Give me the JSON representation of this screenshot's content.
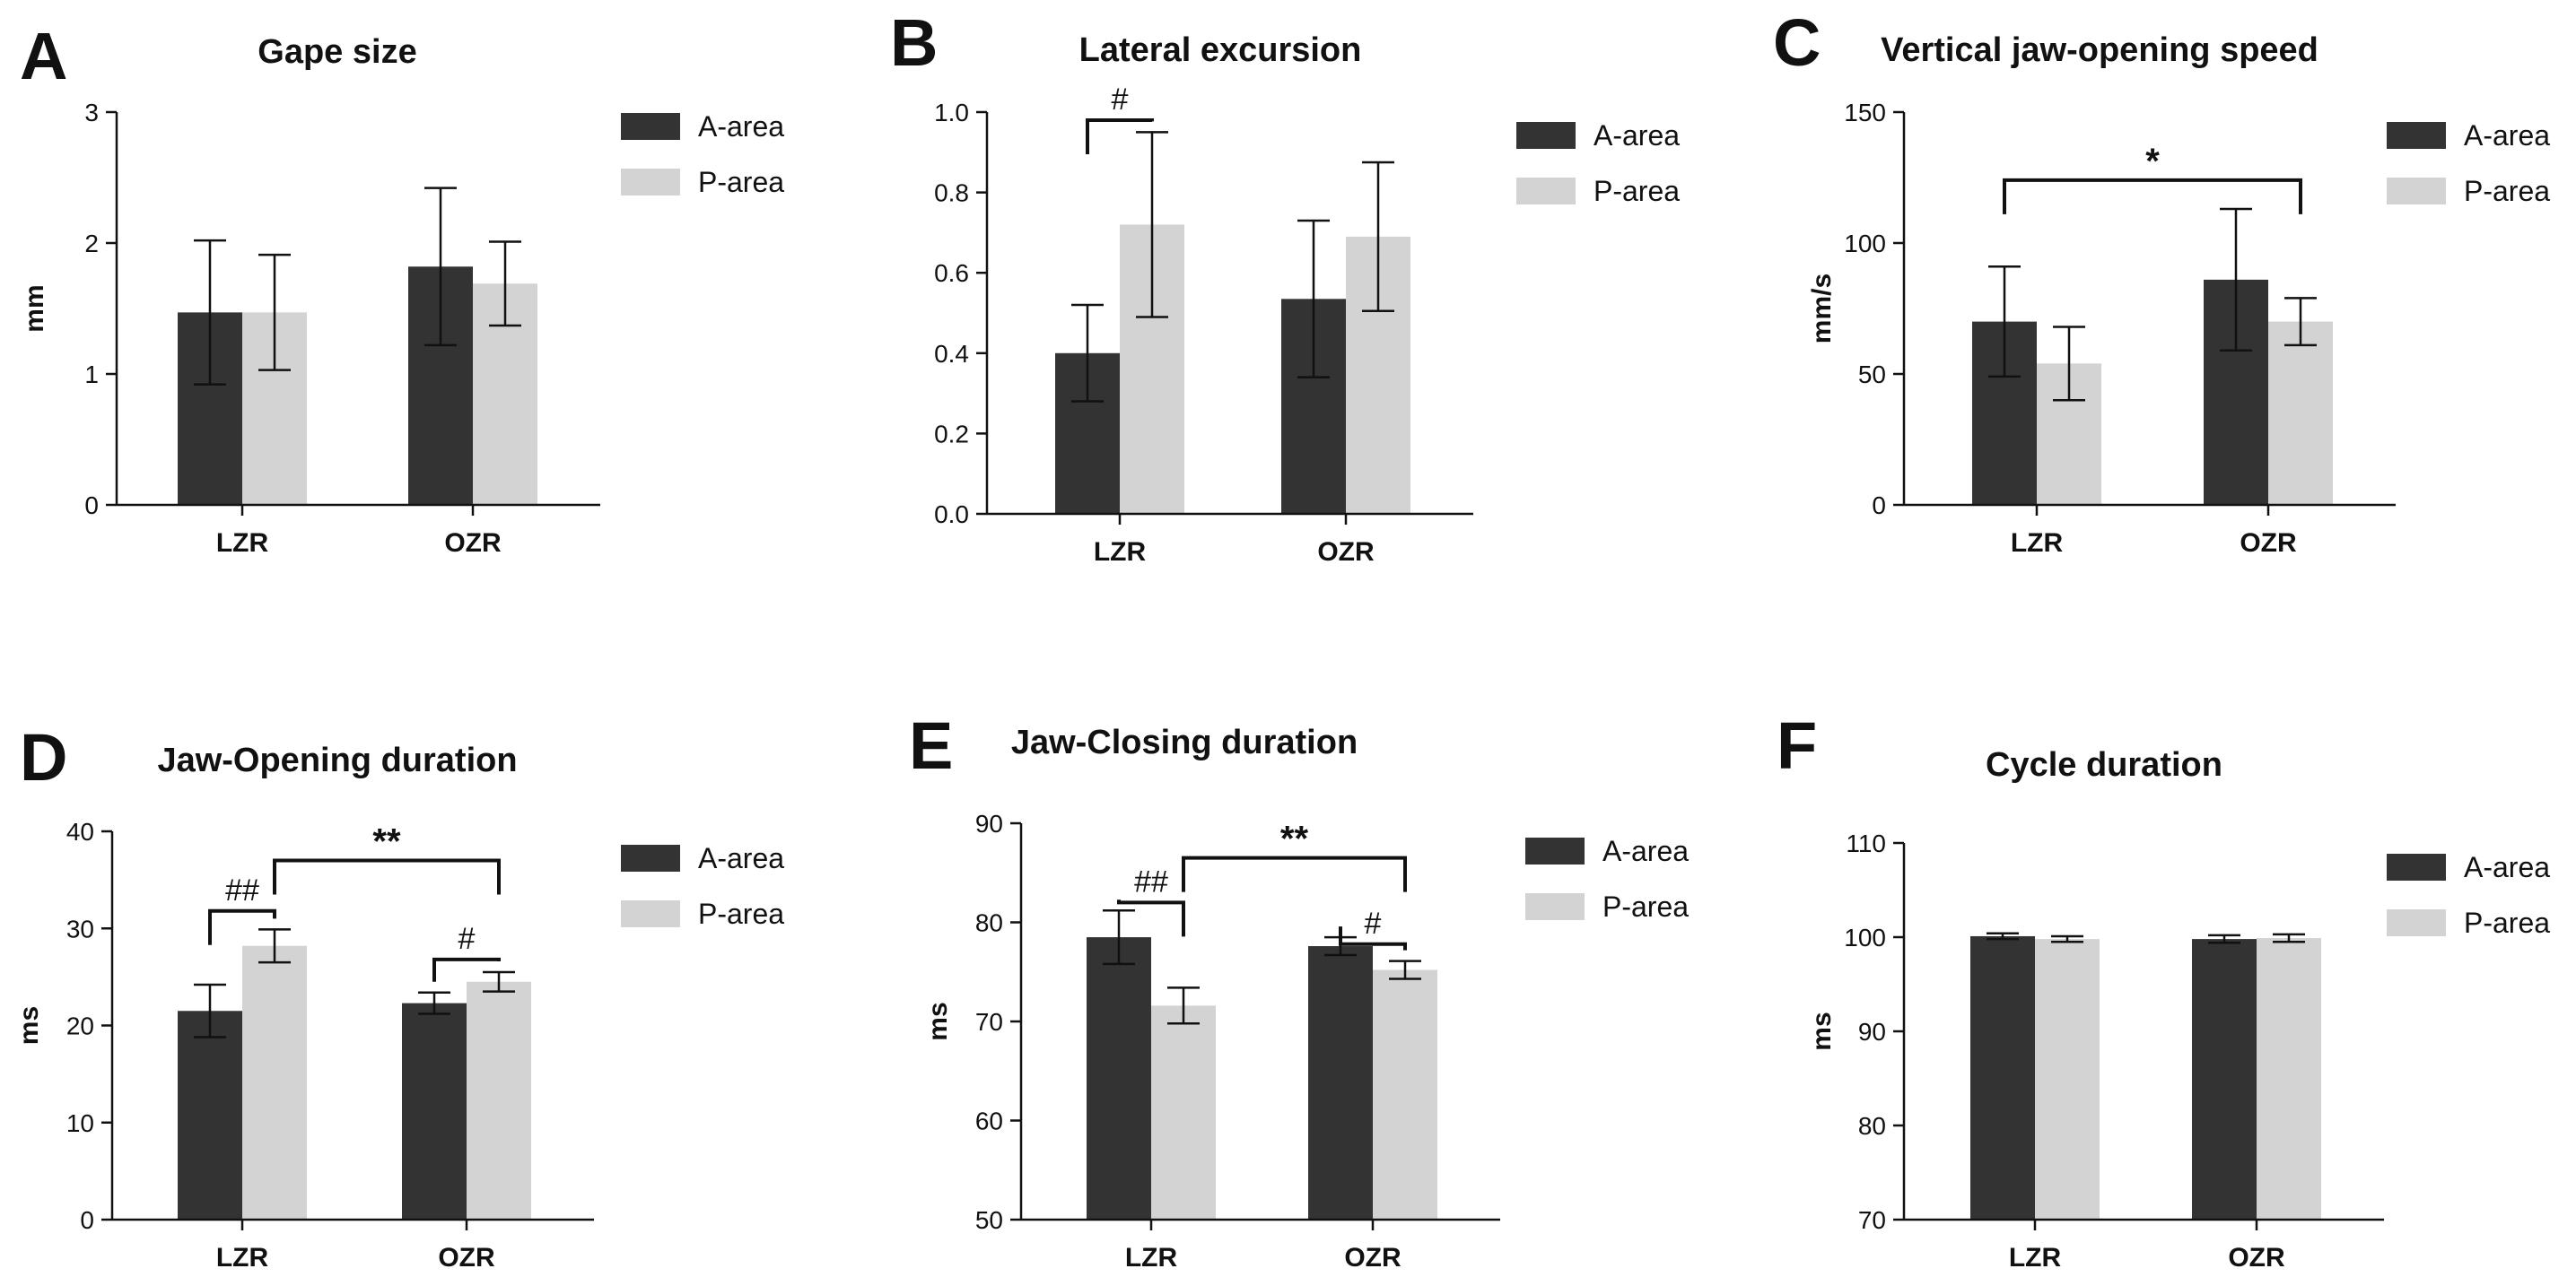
{
  "colors": {
    "a_area": "#333333",
    "p_area": "#d3d3d3",
    "axis": "#111111",
    "error": "#111111"
  },
  "chart_data": [
    {
      "letter": "A",
      "type": "bar",
      "title": "Gape size",
      "ylabel": "mm",
      "categories": [
        "LZR",
        "OZR"
      ],
      "ylim": [
        0,
        3
      ],
      "yticks": [
        0,
        1,
        2,
        3
      ],
      "series": [
        {
          "name": "A-area",
          "values": [
            1.47,
            1.82
          ],
          "errors": [
            0.55,
            0.6
          ]
        },
        {
          "name": "P-area",
          "values": [
            1.47,
            1.69
          ],
          "errors": [
            0.44,
            0.32
          ]
        }
      ],
      "brackets": []
    },
    {
      "letter": "B",
      "type": "bar",
      "title": "Lateral excursion",
      "ylabel": "",
      "categories": [
        "LZR",
        "OZR"
      ],
      "ylim": [
        0,
        1.0
      ],
      "yticks": [
        0.0,
        0.2,
        0.4,
        0.6,
        0.8,
        1.0
      ],
      "series": [
        {
          "name": "A-area",
          "values": [
            0.4,
            0.535
          ],
          "errors": [
            0.12,
            0.195
          ]
        },
        {
          "name": "P-area",
          "values": [
            0.72,
            0.69
          ],
          "errors": [
            0.23,
            0.185
          ]
        }
      ],
      "brackets": [
        {
          "from": [
            0,
            0
          ],
          "to": [
            0,
            1
          ],
          "y": 0.98,
          "label": "#",
          "kind": "hash"
        }
      ]
    },
    {
      "letter": "C",
      "type": "bar",
      "title": "Vertical jaw-opening speed",
      "ylabel": "mm/s",
      "categories": [
        "LZR",
        "OZR"
      ],
      "ylim": [
        0,
        150
      ],
      "yticks": [
        0,
        50,
        100,
        150
      ],
      "series": [
        {
          "name": "A-area",
          "values": [
            70,
            86
          ],
          "errors": [
            21,
            27
          ]
        },
        {
          "name": "P-area",
          "values": [
            54,
            70
          ],
          "errors": [
            14,
            9
          ]
        }
      ],
      "brackets": [
        {
          "from": [
            0,
            0
          ],
          "to": [
            1,
            1
          ],
          "y": 124,
          "label": "*",
          "kind": "star"
        }
      ]
    },
    {
      "letter": "D",
      "type": "bar",
      "title": "Jaw-Opening duration",
      "ylabel": "ms",
      "categories": [
        "LZR",
        "OZR"
      ],
      "ylim": [
        0,
        40
      ],
      "yticks": [
        0,
        10,
        20,
        30,
        40
      ],
      "series": [
        {
          "name": "A-area",
          "values": [
            21.5,
            22.3
          ],
          "errors": [
            2.7,
            1.1
          ]
        },
        {
          "name": "P-area",
          "values": [
            28.2,
            24.5
          ],
          "errors": [
            1.7,
            1.0
          ]
        }
      ],
      "brackets": [
        {
          "from": [
            0,
            0
          ],
          "to": [
            0,
            1
          ],
          "y": 31.8,
          "label": "##",
          "kind": "hash"
        },
        {
          "from": [
            1,
            0
          ],
          "to": [
            1,
            1
          ],
          "y": 26.8,
          "label": "#",
          "kind": "hash"
        },
        {
          "from": [
            0,
            1
          ],
          "to": [
            1,
            1
          ],
          "y": 37,
          "label": "**",
          "kind": "star"
        }
      ]
    },
    {
      "letter": "E",
      "type": "bar",
      "title": "Jaw-Closing duration",
      "ylabel": "ms",
      "categories": [
        "LZR",
        "OZR"
      ],
      "ylim": [
        50,
        90
      ],
      "yticks": [
        50,
        60,
        70,
        80,
        90
      ],
      "series": [
        {
          "name": "A-area",
          "values": [
            78.5,
            77.6
          ],
          "errors": [
            2.7,
            0.9
          ]
        },
        {
          "name": "P-area",
          "values": [
            71.6,
            75.2
          ],
          "errors": [
            1.8,
            0.9
          ]
        }
      ],
      "brackets": [
        {
          "from": [
            0,
            0
          ],
          "to": [
            0,
            1
          ],
          "y": 82,
          "label": "##",
          "kind": "hash"
        },
        {
          "from": [
            1,
            0
          ],
          "to": [
            1,
            1
          ],
          "y": 77.8,
          "label": "#",
          "kind": "hash"
        },
        {
          "from": [
            0,
            1
          ],
          "to": [
            1,
            1
          ],
          "y": 86.5,
          "label": "**",
          "kind": "star"
        }
      ]
    },
    {
      "letter": "F",
      "type": "bar",
      "title": "Cycle duration",
      "ylabel": "ms",
      "categories": [
        "LZR",
        "OZR"
      ],
      "ylim": [
        70,
        110
      ],
      "yticks": [
        70,
        80,
        90,
        100,
        110
      ],
      "series": [
        {
          "name": "A-area",
          "values": [
            100.1,
            99.8
          ],
          "errors": [
            0.3,
            0.4
          ]
        },
        {
          "name": "P-area",
          "values": [
            99.8,
            99.9
          ],
          "errors": [
            0.3,
            0.4
          ]
        }
      ],
      "brackets": []
    }
  ]
}
